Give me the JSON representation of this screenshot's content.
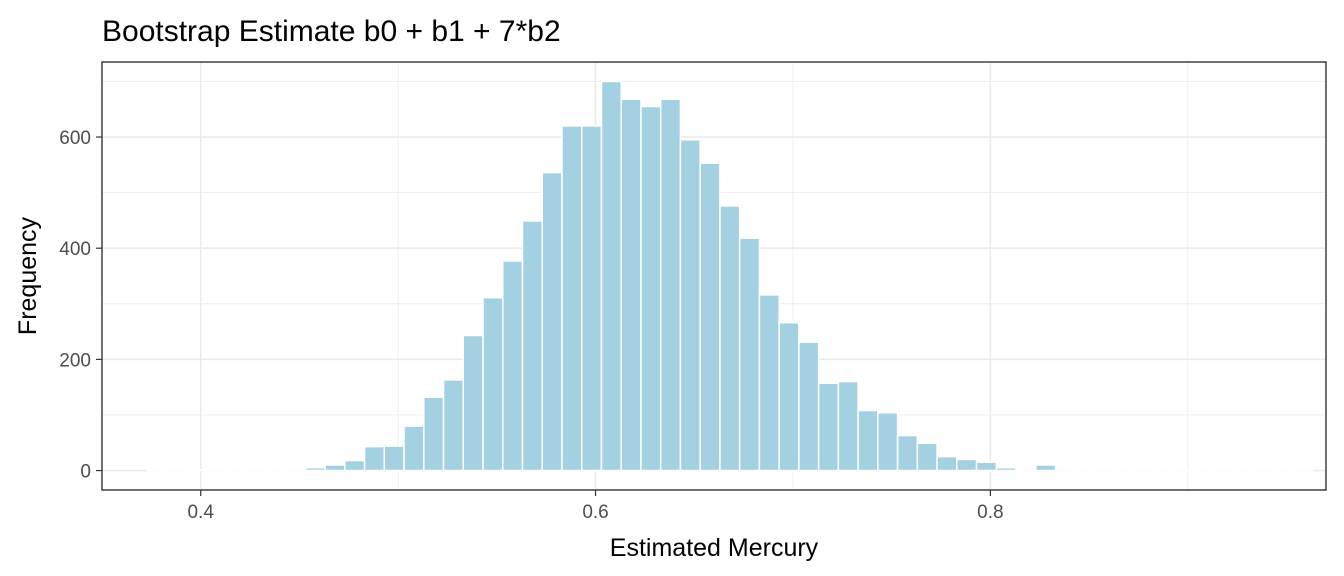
{
  "chart_data": {
    "type": "bar",
    "title": "Bootstrap Estimate b0 + b1 + 7*b2",
    "xlabel": "Estimated Mercury",
    "ylabel": "Frequency",
    "xlim": [
      0.35,
      0.97
    ],
    "ylim": [
      -35,
      735
    ],
    "x_ticks": [
      0.4,
      0.6,
      0.8
    ],
    "x_tick_labels": [
      "0.4",
      "0.6",
      "0.8"
    ],
    "y_ticks": [
      0,
      200,
      400,
      600
    ],
    "y_tick_labels": [
      "0",
      "200",
      "400",
      "600"
    ],
    "bin_width": 0.01,
    "bin_centers": [
      0.378,
      0.388,
      0.398,
      0.408,
      0.418,
      0.428,
      0.438,
      0.448,
      0.458,
      0.468,
      0.478,
      0.488,
      0.498,
      0.508,
      0.518,
      0.528,
      0.538,
      0.548,
      0.558,
      0.568,
      0.578,
      0.588,
      0.598,
      0.608,
      0.618,
      0.628,
      0.638,
      0.648,
      0.658,
      0.668,
      0.678,
      0.688,
      0.698,
      0.708,
      0.718,
      0.728,
      0.738,
      0.748,
      0.758,
      0.768,
      0.778,
      0.788,
      0.798,
      0.808,
      0.818,
      0.828,
      0.838,
      0.848,
      0.858,
      0.868,
      0.878,
      0.888,
      0.898,
      0.908,
      0.918,
      0.928,
      0.938,
      0.948,
      0.958
    ],
    "counts": [
      1,
      0,
      0,
      0,
      0,
      0,
      0,
      0,
      5,
      10,
      18,
      43,
      44,
      80,
      132,
      163,
      243,
      311,
      377,
      449,
      536,
      620,
      620,
      700,
      668,
      655,
      668,
      595,
      553,
      476,
      418,
      316,
      266,
      231,
      157,
      160,
      108,
      104,
      63,
      49,
      25,
      20,
      15,
      5,
      1,
      10,
      0,
      0,
      0,
      0,
      0,
      0,
      0,
      0,
      0,
      0,
      0,
      0,
      1
    ],
    "grid": true,
    "legend": "none",
    "colors": {
      "bar_fill": "#a3d1e1",
      "bar_outline": "#ffffff",
      "grid_major": "#ebebeb",
      "panel_border": "#333333",
      "tick_text": "#4d4d4d"
    }
  }
}
